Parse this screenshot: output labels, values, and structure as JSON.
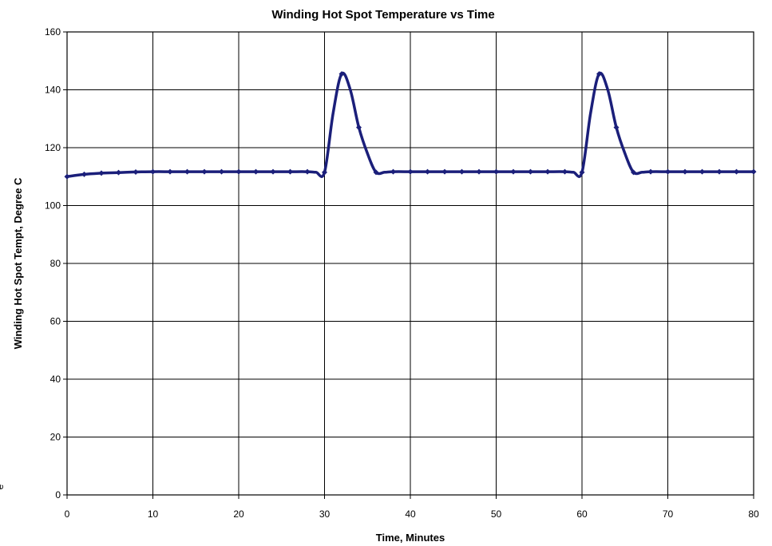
{
  "chart_data": {
    "type": "line",
    "title": "Winding Hot Spot Temperature vs Time",
    "xlabel": "Time, Minutes",
    "ylabel": "Winding Hot Spot Tempt, Degree C",
    "xlim": [
      0,
      80
    ],
    "ylim": [
      0,
      160
    ],
    "xticks": [
      "0",
      "10",
      "20",
      "30",
      "40",
      "50",
      "60",
      "70",
      "80"
    ],
    "yticks": [
      "0",
      "20",
      "40",
      "60",
      "80",
      "100",
      "120",
      "140",
      "160"
    ],
    "grid": true,
    "legend": "none",
    "series": [
      {
        "color": "#1b1f7a",
        "x": [
          0,
          2,
          4,
          6,
          8,
          10,
          12,
          14,
          16,
          18,
          20,
          22,
          24,
          26,
          28,
          29,
          30,
          31,
          32,
          33,
          34,
          35,
          36,
          37,
          38,
          40,
          42,
          44,
          46,
          48,
          50,
          52,
          54,
          56,
          58,
          59,
          60,
          61,
          62,
          63,
          64,
          65,
          66,
          67,
          68,
          70,
          72,
          74,
          76,
          78,
          80
        ],
        "y": [
          110,
          110.8,
          111.2,
          111.4,
          111.6,
          111.7,
          111.7,
          111.7,
          111.7,
          111.7,
          111.7,
          111.7,
          111.7,
          111.7,
          111.7,
          111.5,
          111.5,
          132,
          145.5,
          140,
          127,
          118,
          111.5,
          111.5,
          111.7,
          111.7,
          111.7,
          111.7,
          111.7,
          111.7,
          111.7,
          111.7,
          111.7,
          111.7,
          111.7,
          111.5,
          111.5,
          132,
          145.5,
          140,
          127,
          118,
          111.5,
          111.5,
          111.7,
          111.7,
          111.7,
          111.7,
          111.7,
          111.7,
          111.7
        ],
        "markers": [
          0,
          2,
          4,
          6,
          8,
          10,
          12,
          14,
          16,
          18,
          20,
          22,
          24,
          26,
          28,
          30,
          32,
          34,
          36,
          38,
          40,
          42,
          44,
          46,
          48,
          50,
          52,
          54,
          56,
          58,
          60,
          62,
          64,
          66,
          68,
          70,
          72,
          74,
          76,
          78,
          80
        ]
      }
    ]
  },
  "edge_text": "e"
}
